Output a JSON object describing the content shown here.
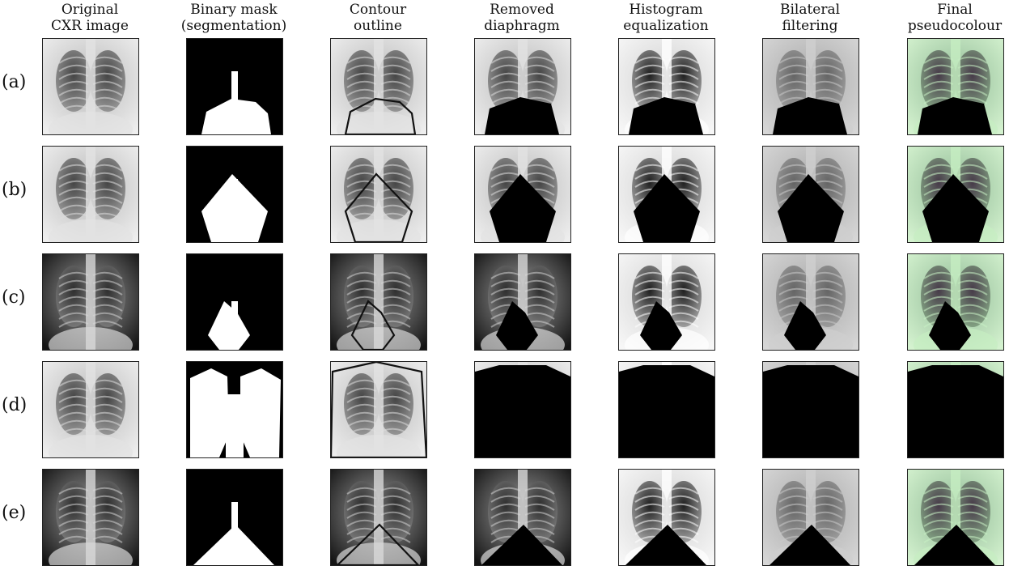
{
  "columns": [
    {
      "line1": "Original",
      "line2": "CXR image"
    },
    {
      "line1": "Binary mask",
      "line2": "(segmentation)"
    },
    {
      "line1": "Contour",
      "line2": "outline"
    },
    {
      "line1": "Removed",
      "line2": "diaphragm"
    },
    {
      "line1": "Histogram",
      "line2": "equalization"
    },
    {
      "line1": "Bilateral",
      "line2": "filtering"
    },
    {
      "line1": "Final",
      "line2": "pseudocolour"
    }
  ],
  "rows": [
    {
      "label": "(a)"
    },
    {
      "label": "(b)"
    },
    {
      "label": "(c)"
    },
    {
      "label": "(d)"
    },
    {
      "label": "(e)"
    }
  ]
}
